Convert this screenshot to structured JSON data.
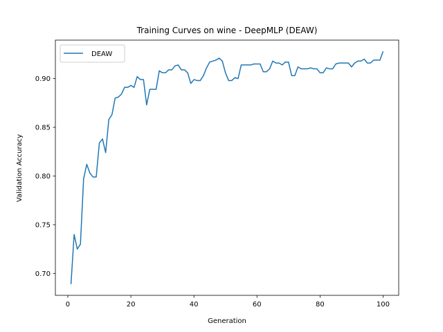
{
  "chart_data": {
    "type": "line",
    "title": "Training Curves on wine - DeepMLP (DEAW)",
    "xlabel": "Generation",
    "ylabel": "Validation Accuracy",
    "xlim": [
      -3.95,
      104.95
    ],
    "ylim": [
      0.6775,
      0.9395
    ],
    "x_ticks": [
      0,
      20,
      40,
      60,
      80,
      100
    ],
    "x_tick_labels": [
      "0",
      "20",
      "40",
      "60",
      "80",
      "100"
    ],
    "y_ticks": [
      0.7,
      0.75,
      0.8,
      0.85,
      0.9
    ],
    "y_tick_labels": [
      "0.70",
      "0.75",
      "0.80",
      "0.85",
      "0.90"
    ],
    "grid": false,
    "legend_position": "upper left",
    "series": [
      {
        "name": "DEAW",
        "color": "#1f77b4",
        "x": [
          1,
          2,
          3,
          4,
          5,
          6,
          7,
          8,
          9,
          10,
          11,
          12,
          13,
          14,
          15,
          16,
          17,
          18,
          19,
          20,
          21,
          22,
          23,
          24,
          25,
          26,
          27,
          28,
          29,
          30,
          31,
          32,
          33,
          34,
          35,
          36,
          37,
          38,
          39,
          40,
          41,
          42,
          43,
          44,
          45,
          46,
          47,
          48,
          49,
          50,
          51,
          52,
          53,
          54,
          55,
          56,
          57,
          58,
          59,
          60,
          61,
          62,
          63,
          64,
          65,
          66,
          67,
          68,
          69,
          70,
          71,
          72,
          73,
          74,
          75,
          76,
          77,
          78,
          79,
          80,
          81,
          82,
          83,
          84,
          85,
          86,
          87,
          88,
          89,
          90,
          91,
          92,
          93,
          94,
          95,
          96,
          97,
          98,
          99,
          100
        ],
        "values": [
          0.689,
          0.74,
          0.725,
          0.73,
          0.797,
          0.812,
          0.803,
          0.799,
          0.799,
          0.834,
          0.838,
          0.824,
          0.858,
          0.863,
          0.88,
          0.881,
          0.884,
          0.891,
          0.891,
          0.893,
          0.891,
          0.902,
          0.899,
          0.899,
          0.873,
          0.889,
          0.889,
          0.889,
          0.908,
          0.906,
          0.906,
          0.909,
          0.909,
          0.913,
          0.914,
          0.909,
          0.909,
          0.906,
          0.895,
          0.899,
          0.898,
          0.898,
          0.903,
          0.911,
          0.917,
          0.918,
          0.919,
          0.921,
          0.918,
          0.906,
          0.898,
          0.898,
          0.901,
          0.9,
          0.914,
          0.914,
          0.914,
          0.914,
          0.915,
          0.915,
          0.915,
          0.907,
          0.907,
          0.91,
          0.918,
          0.916,
          0.916,
          0.914,
          0.917,
          0.917,
          0.903,
          0.903,
          0.912,
          0.91,
          0.91,
          0.91,
          0.911,
          0.91,
          0.91,
          0.906,
          0.906,
          0.911,
          0.91,
          0.91,
          0.915,
          0.916,
          0.916,
          0.916,
          0.916,
          0.912,
          0.916,
          0.918,
          0.918,
          0.92,
          0.916,
          0.916,
          0.919,
          0.919,
          0.919,
          0.928
        ]
      }
    ]
  }
}
